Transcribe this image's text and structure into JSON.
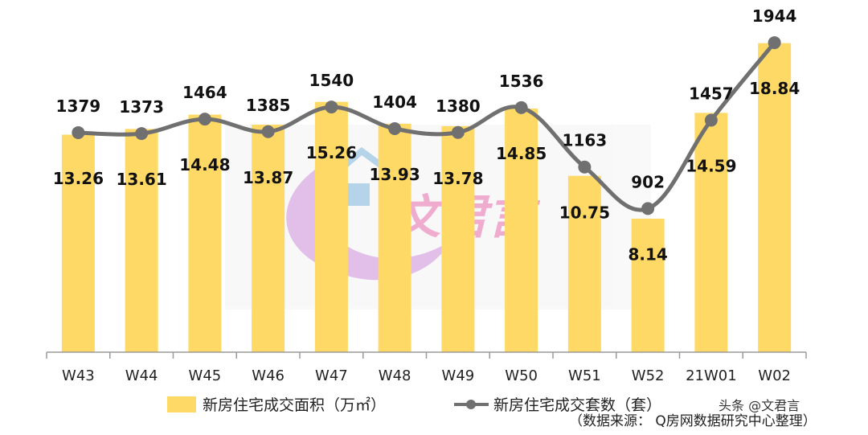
{
  "chart_data": {
    "type": "bar",
    "categories": [
      "W43",
      "W44",
      "W45",
      "W46",
      "W47",
      "W48",
      "W49",
      "W50",
      "W51",
      "W52",
      "21W01",
      "W02"
    ],
    "series": [
      {
        "name": "新房住宅成交面积（万㎡）",
        "type": "bar",
        "axis": "left",
        "values": [
          13.26,
          13.61,
          14.48,
          13.87,
          15.26,
          13.93,
          13.78,
          14.85,
          10.75,
          8.14,
          14.59,
          18.84
        ],
        "color": "#FFD966"
      },
      {
        "name": "新房住宅成交套数（套）",
        "type": "line",
        "axis": "right",
        "values": [
          1379,
          1373,
          1464,
          1385,
          1540,
          1404,
          1380,
          1536,
          1163,
          902,
          1457,
          1944
        ],
        "color": "#707070"
      }
    ],
    "bar_ylim": [
      0,
      20
    ],
    "line_ylim": [
      0,
      2000
    ],
    "legend_position": "bottom",
    "source_note": "（数据来源： Q房网数据研究中心整理）"
  },
  "watermark": {
    "brand": "文君言",
    "platform_text": "头条 @文君言"
  },
  "colors": {
    "bar": "#FFD966",
    "line": "#707070",
    "axis": "#9a9a9a"
  }
}
